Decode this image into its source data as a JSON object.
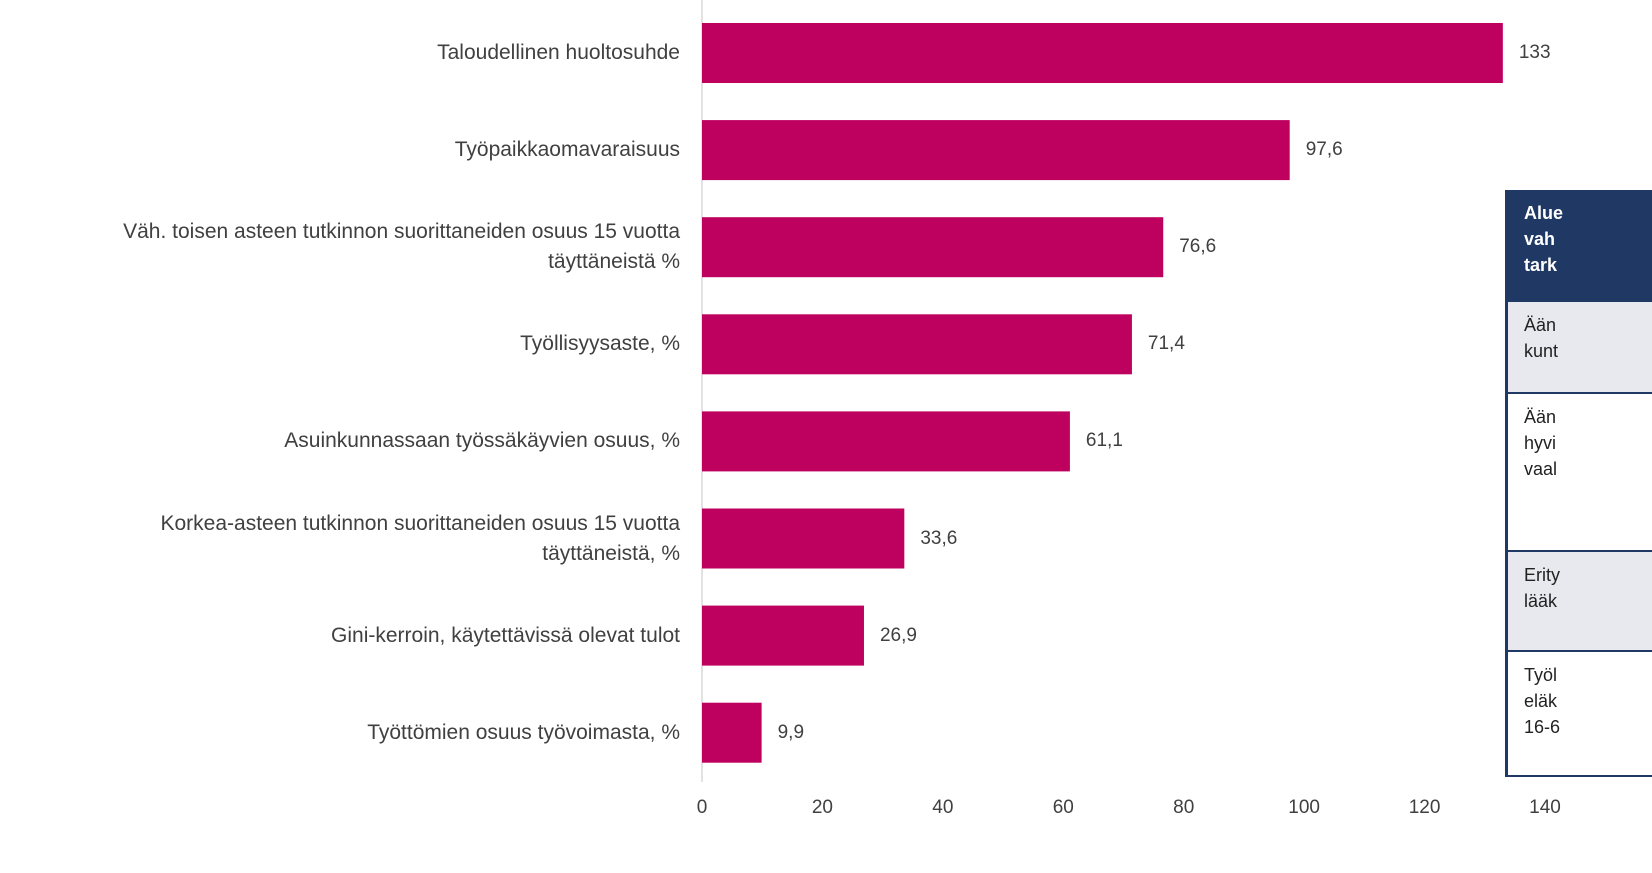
{
  "chart_data": {
    "type": "barh",
    "categories": [
      "Taloudellinen huoltosuhde",
      "Työpaikkaomavaraisuus",
      "Väh. toisen asteen tutkinnon suorittaneiden osuus 15 vuotta\ntäyttäneistä %",
      "Työllisyysaste, %",
      "Asuinkunnassaan työssäkäyvien osuus, %",
      "Korkea-asteen tutkinnon suorittaneiden osuus 15 vuotta\ntäyttäneistä, %",
      "Gini-kerroin, käytettävissä olevat tulot",
      "Työttömien osuus työvoimasta, %"
    ],
    "values": [
      133,
      97.6,
      76.6,
      71.4,
      61.1,
      33.6,
      26.9,
      9.9
    ],
    "value_labels": [
      "133",
      "97,6",
      "76,6",
      "71,4",
      "61,1",
      "33,6",
      "26,9",
      "9,9"
    ],
    "color": "#be005e",
    "xlim": [
      0,
      140
    ],
    "xticks": [
      0,
      20,
      40,
      60,
      80,
      100,
      120,
      140
    ]
  },
  "table": {
    "header": [
      "Alue",
      "vah",
      "tark"
    ],
    "rows": [
      [
        "Ään",
        "kunt"
      ],
      [
        "Ään",
        "hyvi",
        "vaal"
      ],
      [
        "Erity",
        "lääk"
      ],
      [
        "Työl",
        "eläk",
        "16-6"
      ]
    ]
  }
}
